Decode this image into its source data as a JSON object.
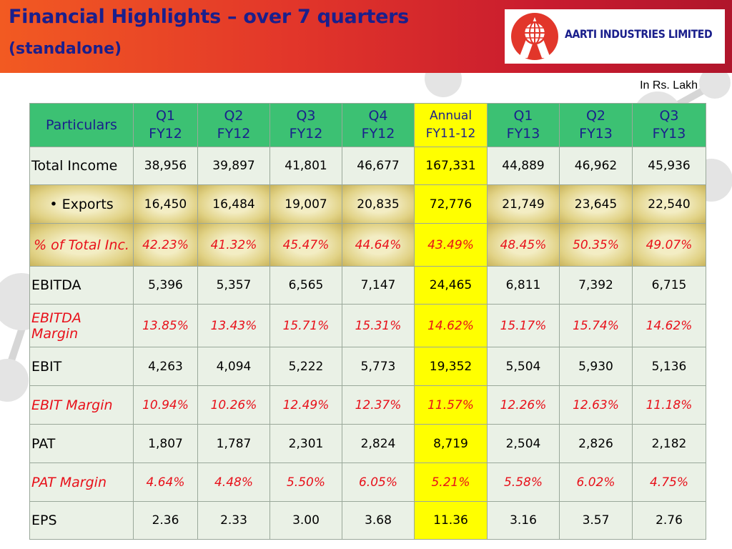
{
  "header": {
    "title_line1": "Financial Highlights – over 7 quarters",
    "title_line2": "(standalone)",
    "company_name": "AARTI INDUSTRIES LIMITED",
    "logo_icon": "globe-a-logo-icon",
    "colors": {
      "banner_start": "#f25a22",
      "banner_end": "#b0162c",
      "title": "#1a1f8c"
    }
  },
  "units_note": "In Rs. Lakh",
  "table": {
    "columns": [
      {
        "line1": "Particulars",
        "line2": ""
      },
      {
        "line1": "Q1",
        "line2": "FY12"
      },
      {
        "line1": "Q2",
        "line2": "FY12"
      },
      {
        "line1": "Q3",
        "line2": "FY12"
      },
      {
        "line1": "Q4",
        "line2": "FY12"
      },
      {
        "line1": "Annual",
        "line2": "FY11-12"
      },
      {
        "line1": "Q1",
        "line2": "FY13"
      },
      {
        "line1": "Q2",
        "line2": "FY13"
      },
      {
        "line1": "Q3",
        "line2": "FY13"
      }
    ],
    "rows": [
      {
        "label": "Total Income",
        "values": [
          "38,956",
          "39,897",
          "41,801",
          "46,677",
          "167,331",
          "44,889",
          "46,962",
          "45,936"
        ]
      },
      {
        "label": "• Exports",
        "values": [
          "16,450",
          "16,484",
          "19,007",
          "20,835",
          "72,776",
          "21,749",
          "23,645",
          "22,540"
        ]
      },
      {
        "label": "% of Total Inc.",
        "values": [
          "42.23%",
          "41.32%",
          "45.47%",
          "44.64%",
          "43.49%",
          "48.45%",
          "50.35%",
          "49.07%"
        ]
      },
      {
        "label": "EBITDA",
        "values": [
          "5,396",
          "5,357",
          "6,565",
          "7,147",
          "24,465",
          "6,811",
          "7,392",
          "6,715"
        ]
      },
      {
        "label": "EBITDA Margin",
        "values": [
          "13.85%",
          "13.43%",
          "15.71%",
          "15.31%",
          "14.62%",
          "15.17%",
          "15.74%",
          "14.62%"
        ]
      },
      {
        "label": "EBIT",
        "values": [
          "4,263",
          "4,094",
          "5,222",
          "5,773",
          "19,352",
          "5,504",
          "5,930",
          "5,136"
        ]
      },
      {
        "label": "EBIT Margin",
        "values": [
          "10.94%",
          "10.26%",
          "12.49%",
          "12.37%",
          "11.57%",
          "12.26%",
          "12.63%",
          "11.18%"
        ]
      },
      {
        "label": "PAT",
        "values": [
          "1,807",
          "1,787",
          "2,301",
          "2,824",
          "8,719",
          "2,504",
          "2,826",
          "2,182"
        ]
      },
      {
        "label": "PAT Margin",
        "values": [
          "4.64%",
          "4.48%",
          "5.50%",
          "6.05%",
          "5.21%",
          "5.58%",
          "6.02%",
          "4.75%"
        ]
      },
      {
        "label": "EPS",
        "values": [
          "2.36",
          "2.33",
          "3.00",
          "3.68",
          "11.36",
          "3.16",
          "3.57",
          "2.76"
        ]
      }
    ],
    "colors": {
      "header_bg": "#3cc173",
      "body_bg": "#eaf1e6",
      "annual_bg": "#ffff00",
      "percent_text": "#e8101a"
    }
  }
}
